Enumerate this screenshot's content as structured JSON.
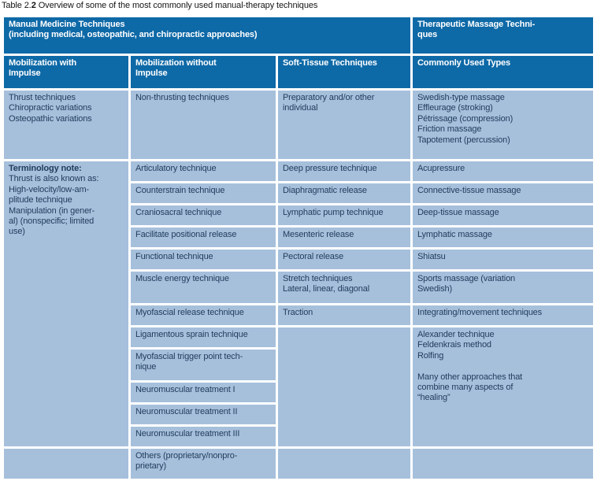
{
  "caption": {
    "label": "Table 2.",
    "label_bold": "2",
    "title": " Overview of some of the most commonly used manual-therapy techniques"
  },
  "colors": {
    "header_bg": "#0e69a7",
    "header_text": "#ffffff",
    "cell_bg": "#a6c0dc",
    "body_text": "#223d5c"
  },
  "table": {
    "group1": "Manual Medicine Techniques\n(including medical, osteopathic, and chiropractic approaches)",
    "group2": "Therapeutic Massage Techni-\nques",
    "headers": {
      "col1": "Mobilization with\nImpulse",
      "col2": "Mobilization without\nImpulse",
      "col3": "Soft-Tissue Techniques",
      "col4": "Commonly Used Types"
    },
    "cells": {
      "thrust": "Thrust techniques\nChiropractic variations\nOsteopathic variations",
      "non_thrusting": "Non-thrusting techniques",
      "preparatory": "Preparatory and/or other\nindividual",
      "swedish": "Swedish-type massage\nEffleurage (stroking)\nPétrissage (compression)\nFriction massage\nTapotement (percussion)",
      "terminology_title": "Terminology note:",
      "terminology_body": "Thrust is also known as:\nHigh-velocity/low-am-\nplitude technique\nManipulation (in gener-\nal) (nonspecific; limited\nuse)",
      "articulatory": "Articulatory technique",
      "deep_pressure": "Deep pressure technique",
      "acupressure": "Acupressure",
      "counterstrain": "Counterstrain technique",
      "diaphragmatic": "Diaphragmatic release",
      "connective": "Connective-tissue massage",
      "craniosacral": "Craniosacral technique",
      "lymphatic_pump": "Lymphatic pump technique",
      "deep_tissue": "Deep-tissue massage",
      "facilitate": "Facilitate positional release",
      "mesenteric": "Mesenteric release",
      "lymphatic_massage": "Lymphatic massage",
      "functional": "Functional technique",
      "pectoral": "Pectoral release",
      "shiatsu": "Shiatsu",
      "muscle_energy": "Muscle energy technique",
      "stretch": "Stretch techniques\nLateral, linear, diagonal",
      "sports": "Sports massage (variation\nSwedish)",
      "myofascial_release": "Myofascial release technique",
      "traction": "Traction",
      "integrating": "Integrating/movement techniques",
      "ligamentous": "Ligamentous sprain technique",
      "myofascial_trigger": "Myofascial trigger point tech-\nnique",
      "alexander": "Alexander technique\nFeldenkrais method\nRolfing\n\nMany other approaches that\ncombine many aspects of\n“healing”",
      "neuro1": "Neuromuscular treatment I",
      "neuro2": "Neuromuscular treatment II",
      "neuro3": "Neuromuscular treatment III",
      "others": "Others (proprietary/nonpro-\nprietary)"
    }
  }
}
